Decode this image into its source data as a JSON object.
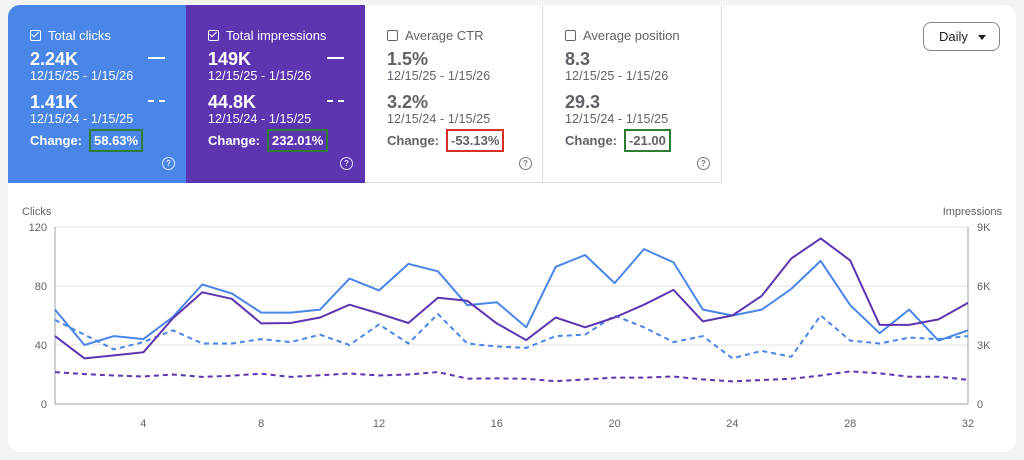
{
  "metrics": [
    {
      "label": "Total clicks",
      "checked": true,
      "value_current": "2.24K",
      "range_current": "12/15/25 - 1/15/26",
      "value_previous": "1.41K",
      "range_previous": "12/15/24 - 1/15/25",
      "change_label": "Change:",
      "change_value": "58.63%",
      "bg": "#4a86e8",
      "fg": "#ffffff",
      "box": "#2e7d32"
    },
    {
      "label": "Total impressions",
      "checked": true,
      "value_current": "149K",
      "range_current": "12/15/25 - 1/15/26",
      "value_previous": "44.8K",
      "range_previous": "12/15/24 - 1/15/25",
      "change_label": "Change:",
      "change_value": "232.01%",
      "bg": "#5e35b1",
      "fg": "#ffffff",
      "box": "#2e7d32"
    },
    {
      "label": "Average CTR",
      "checked": false,
      "value_current": "1.5%",
      "range_current": "12/15/25 - 1/15/26",
      "value_previous": "3.2%",
      "range_previous": "12/15/24 - 1/15/25",
      "change_label": "Change:",
      "change_value": "-53.13%",
      "bg": "#ffffff",
      "fg": "#5f6368",
      "box": "#d93025"
    },
    {
      "label": "Average position",
      "checked": false,
      "value_current": "8.3",
      "range_current": "12/15/25 - 1/15/26",
      "value_previous": "29.3",
      "range_previous": "12/15/24 - 1/15/25",
      "change_label": "Change:",
      "change_value": "-21.00",
      "bg": "#ffffff",
      "fg": "#5f6368",
      "box": "#2e7d32"
    }
  ],
  "help_glyph": "?",
  "period": {
    "label": "Daily",
    "icon": "chevron-down-icon"
  },
  "chart_data": {
    "type": "line",
    "ylabel": "Clicks",
    "y2label": "Impressions",
    "ylim": [
      0,
      120
    ],
    "y2lim": [
      0,
      9000
    ],
    "yticks": [
      "0",
      "40",
      "80",
      "120"
    ],
    "y2ticks": [
      "0",
      "3K",
      "6K",
      "9K"
    ],
    "xticks": [
      4,
      8,
      12,
      16,
      20,
      24,
      28,
      32
    ],
    "x": [
      1,
      2,
      3,
      4,
      5,
      6,
      7,
      8,
      9,
      10,
      11,
      12,
      13,
      14,
      15,
      16,
      17,
      18,
      19,
      20,
      21,
      22,
      23,
      24,
      25,
      26,
      27,
      28,
      29,
      30,
      31,
      32
    ],
    "series": [
      {
        "axis": "left",
        "style": "solid",
        "color": "#4a86e8",
        "values": [
          64,
          40,
          46,
          44,
          59,
          81,
          75,
          62,
          62,
          64,
          85,
          77,
          95,
          90,
          67,
          69,
          52,
          93,
          101,
          82,
          105,
          96,
          64,
          60,
          64,
          78,
          97,
          67,
          48,
          64,
          43,
          50
        ]
      },
      {
        "axis": "left",
        "style": "dashed",
        "color": "#4a86e8",
        "values": [
          57,
          47,
          37,
          42,
          50,
          41,
          41,
          44,
          42,
          47,
          40,
          54,
          41,
          61,
          41,
          39,
          38,
          46,
          47,
          60,
          52,
          42,
          46,
          31,
          36,
          32,
          60,
          43,
          41,
          45,
          44,
          46
        ]
      },
      {
        "axis": "right",
        "style": "solid",
        "color": "#5e35b1",
        "values": [
          3450,
          2320,
          2470,
          2630,
          4350,
          5680,
          5350,
          4100,
          4120,
          4400,
          5050,
          4600,
          4120,
          5400,
          5250,
          4100,
          3250,
          4400,
          3900,
          4400,
          5050,
          5800,
          4200,
          4500,
          5500,
          7400,
          8420,
          7300,
          4020,
          4020,
          4300,
          5140
        ]
      },
      {
        "axis": "right",
        "style": "dashed",
        "color": "#5e35b1",
        "values": [
          1620,
          1520,
          1450,
          1400,
          1500,
          1380,
          1440,
          1540,
          1380,
          1460,
          1550,
          1450,
          1500,
          1620,
          1290,
          1300,
          1280,
          1160,
          1250,
          1340,
          1340,
          1400,
          1250,
          1150,
          1220,
          1280,
          1450,
          1660,
          1560,
          1390,
          1390,
          1230
        ]
      }
    ]
  }
}
